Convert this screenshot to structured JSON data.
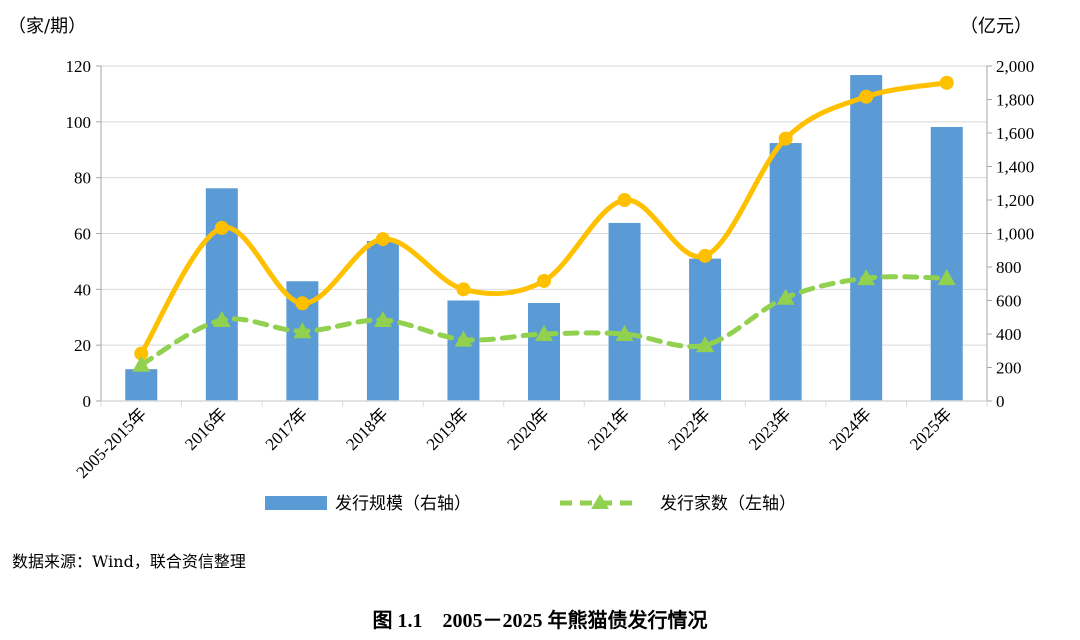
{
  "chart_data": {
    "type": "bar+line",
    "title": "",
    "categories": [
      "2005-2015年",
      "2016年",
      "2017年",
      "2018年",
      "2019年",
      "2020年",
      "2021年",
      "2022年",
      "2023年",
      "2024年",
      "2025年"
    ],
    "left_axis": {
      "unit": "（家/期）",
      "ylim": [
        0,
        120
      ],
      "ticks": [
        0,
        20,
        40,
        60,
        80,
        100,
        120
      ]
    },
    "right_axis": {
      "unit": "（亿元）",
      "ylim": [
        0,
        2000
      ],
      "ticks": [
        "0",
        "200",
        "400",
        "600",
        "800",
        "1,000",
        "1,200",
        "1,400",
        "1,600",
        "1,800",
        "2,000"
      ]
    },
    "grid": true,
    "legend_placement": "bottom",
    "series": [
      {
        "name": "发行规模（右轴）",
        "type": "bar",
        "axis": "right",
        "color": "#5B9BD5",
        "values": [
          190,
          1270,
          715,
          955,
          600,
          585,
          1063,
          850,
          1540,
          1946,
          1636
        ]
      },
      {
        "type": "line",
        "axis": "left",
        "color": "#FFC000",
        "marker": "circle",
        "smooth": true,
        "values": [
          17,
          62,
          35,
          58,
          40,
          43,
          72,
          52,
          94,
          109,
          114
        ]
      },
      {
        "name": "发行家数（左轴）",
        "type": "line",
        "axis": "left",
        "color": "#92D050",
        "marker": "triangle",
        "dashed": true,
        "smooth": true,
        "values": [
          13,
          29,
          25,
          29,
          22,
          24,
          24,
          20,
          37,
          44,
          44
        ]
      }
    ]
  },
  "source": "数据来源：Wind，联合资信整理",
  "caption": "图 1.1　2005－2025 年熊猫债发行情况"
}
